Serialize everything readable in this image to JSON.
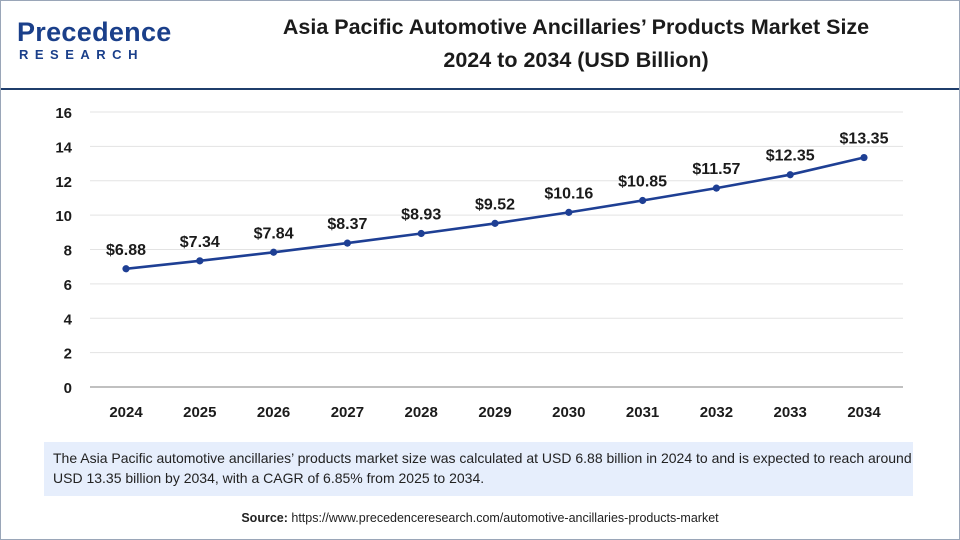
{
  "header": {
    "logo_main": "Precedence",
    "logo_sub": "RESEARCH",
    "title_line1": "Asia Pacific Automotive Ancillaries’ Products Market Size",
    "title_line2": "2024 to 2034 (USD Billion)"
  },
  "chart_data": {
    "type": "line",
    "title": "Asia Pacific Automotive Ancillaries’ Products Market Size 2024 to 2034 (USD Billion)",
    "xlabel": "",
    "ylabel": "",
    "categories": [
      "2024",
      "2025",
      "2026",
      "2027",
      "2028",
      "2029",
      "2030",
      "2031",
      "2032",
      "2033",
      "2034"
    ],
    "series": [
      {
        "name": "Market Size (USD Billion)",
        "values": [
          6.88,
          7.34,
          7.84,
          8.37,
          8.93,
          9.52,
          10.16,
          10.85,
          11.57,
          12.35,
          13.35
        ],
        "labels": [
          "$6.88",
          "$7.34",
          "$7.84",
          "$8.37",
          "$8.93",
          "$9.52",
          "$10.16",
          "$10.85",
          "$11.57",
          "$12.35",
          "$13.35"
        ]
      }
    ],
    "ylim": [
      0,
      16
    ],
    "yticks": [
      0,
      2,
      4,
      6,
      8,
      10,
      12,
      14,
      16
    ],
    "grid": true,
    "legend": "none",
    "line_color": "#1e3f94"
  },
  "note": {
    "text": "The Asia Pacific automotive ancillaries’ products market size was calculated at USD 6.88 billion in 2024 to and is expected to reach around USD 13.35  billion by 2034, with a CAGR of 6.85% from 2025 to 2034."
  },
  "source": {
    "label": "Source:",
    "url": "https://www.precedenceresearch.com/automotive-ancillaries-products-market"
  }
}
